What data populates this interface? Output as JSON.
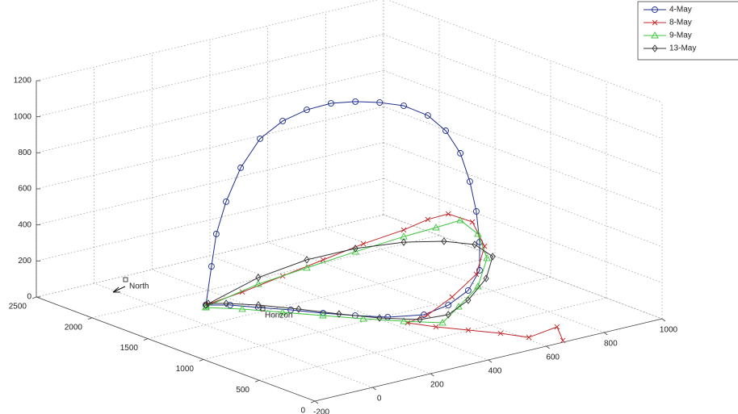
{
  "chart_data": {
    "type": "line3d",
    "xlim": [
      -200,
      1000
    ],
    "xticks": [
      -200,
      0,
      200,
      400,
      600,
      800,
      1000
    ],
    "ylim": [
      0,
      2500
    ],
    "yticks": [
      0,
      500,
      1000,
      1500,
      2000,
      2500
    ],
    "zlim": [
      0,
      1200
    ],
    "zticks": [
      0,
      200,
      400,
      600,
      800,
      1000,
      1200
    ],
    "grid": true,
    "legend": "top-right",
    "annotations": [
      "North",
      "Horizon"
    ],
    "series": [
      {
        "name": "4-May",
        "color": "#1f2f8f",
        "marker": "circle",
        "x": [
          113,
          123,
          132,
          150,
          177,
          212,
          254,
          298,
          342,
          387,
          432,
          476,
          520,
          553,
          580,
          597,
          609,
          615,
          615,
          594,
          558,
          513,
          429,
          369,
          315,
          265,
          210,
          164,
          113
        ],
        "y": [
          1791,
          1767,
          1747,
          1706,
          1645,
          1562,
          1468,
          1366,
          1263,
          1161,
          1060,
          958,
          856,
          781,
          720,
          679,
          652,
          638,
          638,
          686,
          771,
          873,
          980,
          1116,
          1264,
          1424,
          1572,
          1706,
          1791
        ],
        "z": [
          0,
          216,
          397,
          579,
          771,
          938,
          1042,
          1111,
          1154,
          1170,
          1171,
          1160,
          1113,
          1033,
          912,
          758,
          594,
          425,
          268,
          153,
          66,
          6,
          0,
          0,
          0,
          0,
          0,
          0,
          0
        ]
      },
      {
        "name": "8-May",
        "color": "#c0282b",
        "marker": "x",
        "x": [
          113,
          180,
          254,
          328,
          402,
          476,
          520,
          558,
          602,
          624,
          609,
          565,
          520,
          439,
          476,
          526,
          576,
          613,
          732,
          667
        ],
        "y": [
          1791,
          1638,
          1468,
          1297,
          1128,
          958,
          856,
          771,
          669,
          617,
          652,
          755,
          856,
          827,
          669,
          509,
          349,
          191,
          247,
          26
        ],
        "z": [
          0,
          82,
          182,
          283,
          383,
          471,
          536,
          572,
          534,
          403,
          245,
          112,
          7,
          0,
          0,
          0,
          0,
          0,
          0,
          0
        ]
      },
      {
        "name": "9-May",
        "color": "#3cc43c",
        "marker": "triangle",
        "x": [
          104,
          209,
          298,
          387,
          476,
          535,
          580,
          612,
          629,
          612,
          577,
          513,
          440,
          368,
          301,
          234,
          167,
          99
        ],
        "y": [
          1767,
          1570,
          1366,
          1161,
          958,
          822,
          720,
          645,
          608,
          645,
          728,
          706,
          864,
          1041,
          1229,
          1417,
          1605,
          1755
        ],
        "z": [
          0,
          131,
          234,
          337,
          434,
          493,
          540,
          469,
          337,
          178,
          60,
          0,
          0,
          0,
          0,
          0,
          0,
          0
        ]
      },
      {
        "name": "13-May",
        "color": "#333333",
        "marker": "diamond",
        "x": [
          113,
          209,
          298,
          387,
          476,
          550,
          607,
          640,
          628,
          594,
          558,
          483,
          407,
          344,
          286,
          224,
          165,
          127
        ],
        "y": [
          1791,
          1570,
          1366,
          1161,
          958,
          789,
          661,
          586,
          613,
          686,
          771,
          832,
          996,
          1196,
          1408,
          1608,
          1744,
          1806
        ],
        "z": [
          0,
          167,
          279,
          355,
          403,
          419,
          409,
          347,
          224,
          99,
          13,
          0,
          0,
          0,
          0,
          0,
          0,
          0
        ]
      }
    ]
  }
}
